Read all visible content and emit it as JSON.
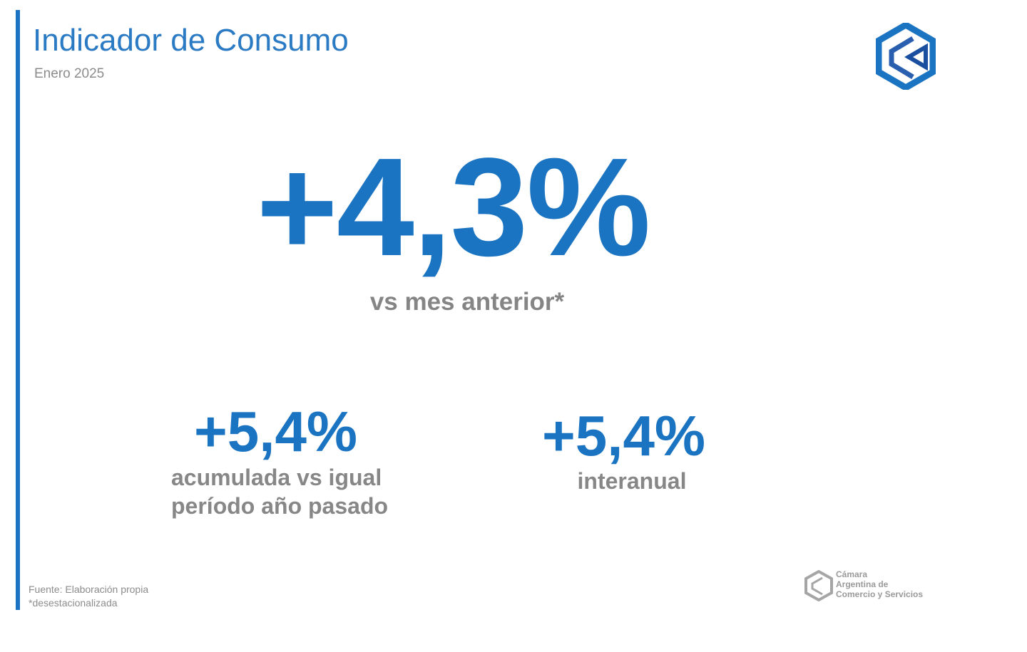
{
  "header": {
    "title": "Indicador de Consumo",
    "subtitle": "Enero 2025"
  },
  "main": {
    "value": "+4,3%",
    "caption": "vs mes anterior*"
  },
  "secondary": [
    {
      "value": "+5,4%",
      "caption_lines": [
        "acumulada vs igual",
        "período año pasado"
      ]
    },
    {
      "value": "+5,4%",
      "caption_lines": [
        "interanual"
      ]
    }
  ],
  "footer": {
    "source": "Fuente: Elaboración propia",
    "note": "*desestacionalizada"
  },
  "brand": {
    "lines": [
      "Cámara",
      "Argentina de",
      "Comercio y Servicios"
    ]
  },
  "colors": {
    "accent": "#1b74c2",
    "caption": "#878787"
  }
}
